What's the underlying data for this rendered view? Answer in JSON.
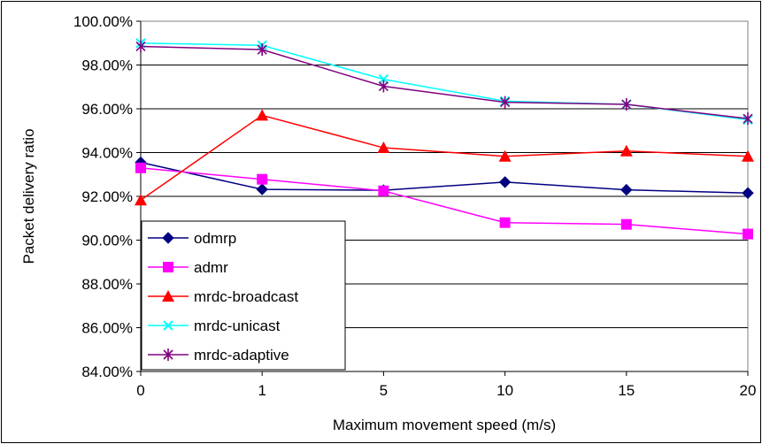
{
  "chart_data": {
    "type": "line",
    "title": "",
    "xlabel": "Maximum movement speed (m/s)",
    "ylabel": "Packet delivery ratio",
    "categories": [
      "0",
      "1",
      "5",
      "10",
      "15",
      "20"
    ],
    "ylim": [
      0.84,
      1.0
    ],
    "ytick_step": 0.02,
    "y_tick_format": "percent_2dp",
    "grid": "horizontal",
    "legend_position": "lower-left",
    "series": [
      {
        "name": "odmrp",
        "color": "#000080",
        "marker": "diamond",
        "values": [
          0.9355,
          0.9232,
          0.9228,
          0.9265,
          0.923,
          0.9215
        ]
      },
      {
        "name": "admr",
        "color": "#FF00FF",
        "marker": "square",
        "values": [
          0.933,
          0.9278,
          0.9225,
          0.908,
          0.9072,
          0.9028
        ]
      },
      {
        "name": "mrdc-broadcast",
        "color": "#FF0000",
        "marker": "triangle",
        "values": [
          0.9183,
          0.957,
          0.9422,
          0.9383,
          0.9407,
          0.9383
        ]
      },
      {
        "name": "mrdc-unicast",
        "color": "#00FFFF",
        "marker": "x",
        "values": [
          0.99,
          0.989,
          0.9735,
          0.9635,
          0.962,
          0.955
        ]
      },
      {
        "name": "mrdc-adaptive",
        "color": "#800080",
        "marker": "asterisk",
        "values": [
          0.9885,
          0.987,
          0.9703,
          0.963,
          0.962,
          0.9555
        ]
      }
    ]
  }
}
